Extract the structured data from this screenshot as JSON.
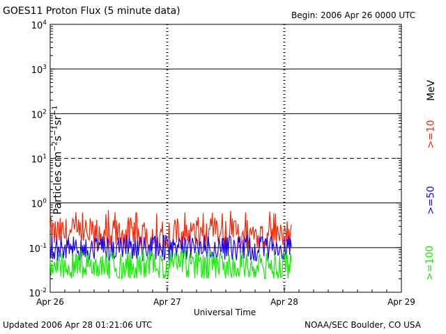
{
  "title": "GOES11 Proton Flux (5 minute data)",
  "begin": "Begin: 2006 Apr 26 0000 UTC",
  "updated": "Updated 2006 Apr 28 01:21:06 UTC",
  "credit": "NOAA/SEC Boulder, CO USA",
  "colors": {
    "p10": "#ff2200",
    "p50": "#1500ff",
    "p100": "#11ee00"
  },
  "chart_data": {
    "type": "line",
    "title": "GOES11 Proton Flux (5 minute data)",
    "xlabel": "Universal Time",
    "ylabel": "Particles cm-2 s-1 sr-1",
    "yscale": "log",
    "ylim": [
      0.01,
      10000
    ],
    "xlim_days": [
      0,
      3
    ],
    "x_tick_labels": [
      "Apr 26",
      "Apr 27",
      "Apr 28",
      "Apr 29"
    ],
    "y_tick_labels": [
      {
        "base": "10",
        "exp": "-2"
      },
      {
        "base": "10",
        "exp": "-1"
      },
      {
        "base": "10",
        "exp": "0"
      },
      {
        "base": "10",
        "exp": "1"
      },
      {
        "base": "10",
        "exp": "2"
      },
      {
        "base": "10",
        "exp": "3"
      },
      {
        "base": "10",
        "exp": "4"
      }
    ],
    "units_label": "MeV",
    "grid": "horizontal lines at each decade; dashed at 10^1",
    "series": [
      {
        "name": ">=10",
        "color": "#ff2200",
        "typical": 0.2,
        "range": [
          0.1,
          0.7
        ]
      },
      {
        "name": ">=50",
        "color": "#1500ff",
        "typical": 0.1,
        "range": [
          0.05,
          0.2
        ]
      },
      {
        "name": ">=100",
        "color": "#11ee00",
        "typical": 0.04,
        "range": [
          0.02,
          0.09
        ]
      }
    ],
    "data_end_day": 2.06
  }
}
